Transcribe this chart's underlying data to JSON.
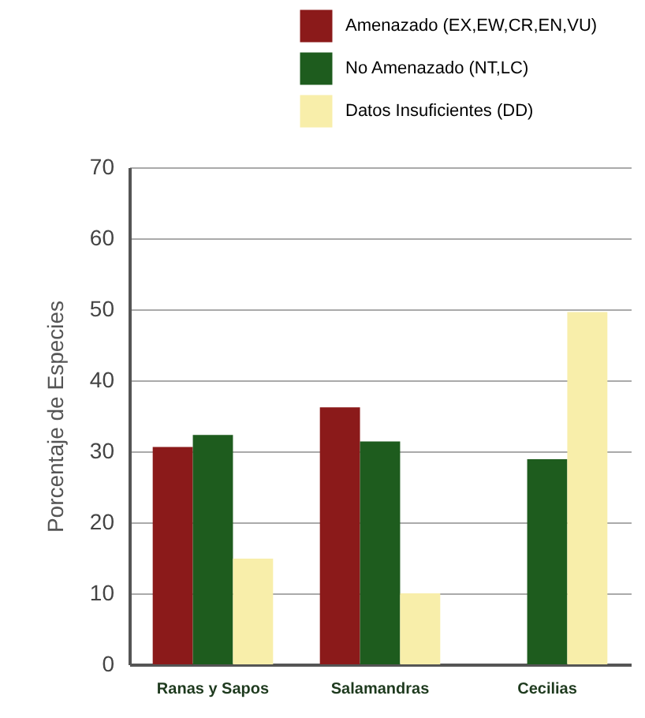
{
  "chart_data": {
    "type": "bar",
    "ylabel": "Porcentaje de Especies",
    "categories": [
      "Ranas y Sapos",
      "Salamandras",
      "Cecilias"
    ],
    "series": [
      {
        "name": "Amenazado (EX,EW,CR,EN,VU)",
        "color": "#8b1a1a",
        "values": [
          30.6,
          36.2,
          null
        ]
      },
      {
        "name": "No Amenazado (NT,LC)",
        "color": "#1e5c1e",
        "values": [
          32.3,
          31.4,
          28.9
        ]
      },
      {
        "name": "Datos Insuficientes (DD)",
        "color": "#f8eeaa",
        "values": [
          14.9,
          10,
          49.6
        ]
      }
    ],
    "ylim": [
      0,
      70
    ],
    "yticks": [
      0,
      10,
      20,
      30,
      40,
      50,
      60,
      70
    ],
    "grid": "y",
    "legend": "top right"
  }
}
